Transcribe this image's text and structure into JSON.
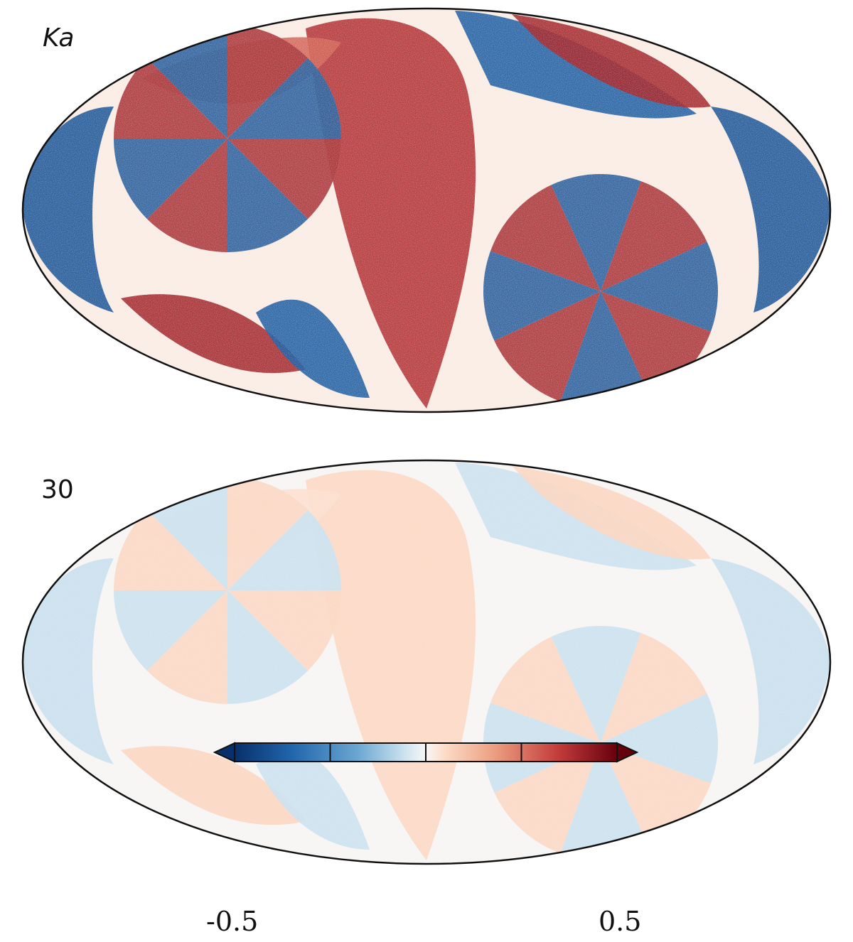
{
  "panels": [
    {
      "label": "Ka",
      "pattern": "strong",
      "amplitude": 0.45
    },
    {
      "label": "30",
      "pattern": "weak",
      "amplitude": 0.07
    }
  ],
  "projection": "mollweide",
  "colorbar": {
    "colormap": "RdBu_r",
    "min_label": "-0.5",
    "max_label": "0.5",
    "range": [
      -0.5,
      0.5
    ],
    "extend": "both",
    "ticks": [
      -0.25,
      0.0,
      0.25
    ],
    "colors": {
      "low": "#08306b",
      "mid_low": "#4b8ec4",
      "center": "#f7f7f7",
      "mid_high": "#e07b5f",
      "high": "#67000d"
    }
  }
}
